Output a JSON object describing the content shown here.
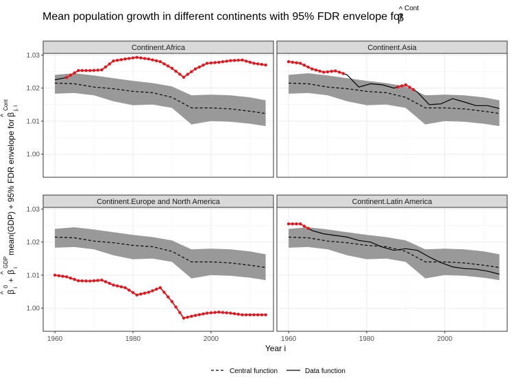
{
  "title": {
    "main": "Mean population growth in different continents with 95% FDR envelope for",
    "beta_hat": "β",
    "hat": "^",
    "beta_sup": "Cont"
  },
  "ylabel": {
    "part1": "β",
    "part1_sub": "i",
    "part1_sup": "0",
    "plus1": "+",
    "part2": "β",
    "part2_sub": "i",
    "part2_sup": "GDP",
    "part3": "mean(GDP) + 95% FDR envelope for",
    "part4": "β",
    "part4_sub": "j, i",
    "part4_sup": "Cont",
    "hat": "^"
  },
  "xlabel": "Year i",
  "legend": {
    "central_label": "Central function",
    "data_label": "Data function"
  },
  "colors": {
    "envelope": "#999999",
    "central": "#000000",
    "data": "#000000",
    "highlight": "#e8141b",
    "panel_bg": "#ffffff",
    "grid": "#ebebeb",
    "strip_bg": "#d9d9d9",
    "border": "#333333"
  },
  "chart_data": {
    "type": "line",
    "facets": [
      "Continent.Africa",
      "Continent.Asia",
      "Continent.Europe and North America",
      "Continent.Latin America"
    ],
    "xlim": [
      1957,
      2016
    ],
    "ylim": [
      0.993,
      1.0305
    ],
    "x_ticks": [
      1960,
      1980,
      2000
    ],
    "y_ticks": [
      1.0,
      1.01,
      1.02,
      1.03
    ],
    "y_tick_labels": [
      "1.00",
      "1.01",
      "1.02",
      "1.03"
    ],
    "x_tick_labels": [
      "1960",
      "1980",
      "2000"
    ],
    "years": [
      1960,
      1965,
      1970,
      1975,
      1980,
      1985,
      1990,
      1995,
      2000,
      2005,
      2010,
      2014
    ],
    "envelope_lower": [
      1.0183,
      1.0185,
      1.0178,
      1.016,
      1.0148,
      1.015,
      1.014,
      1.009,
      1.01,
      1.0098,
      1.0092,
      1.0085
    ],
    "envelope_upper": [
      1.024,
      1.0245,
      1.0238,
      1.023,
      1.0222,
      1.0215,
      1.0205,
      1.0178,
      1.018,
      1.0178,
      1.0172,
      1.0163
    ],
    "central_function": [
      1.0215,
      1.0213,
      1.0203,
      1.0198,
      1.019,
      1.0186,
      1.0172,
      1.014,
      1.014,
      1.0137,
      1.013,
      1.0123
    ],
    "series": [
      {
        "name": "Continent.Africa",
        "years": [
          1960,
          1963,
          1966,
          1969,
          1972,
          1975,
          1978,
          1981,
          1984,
          1987,
          1990,
          1993,
          1996,
          1999,
          2002,
          2005,
          2008,
          2011,
          2014
        ],
        "values": [
          1.0225,
          1.0232,
          1.0253,
          1.0253,
          1.0255,
          1.0282,
          1.0288,
          1.0293,
          1.0288,
          1.028,
          1.026,
          1.0233,
          1.0258,
          1.0275,
          1.0278,
          1.0283,
          1.0285,
          1.0275,
          1.027
        ],
        "highlight_from": 1963,
        "highlight_to": 2014
      },
      {
        "name": "Continent.Asia",
        "years": [
          1960,
          1963,
          1966,
          1969,
          1972,
          1975,
          1978,
          1981,
          1984,
          1987,
          1990,
          1993,
          1996,
          1999,
          2002,
          2005,
          2008,
          2011,
          2014
        ],
        "values": [
          1.028,
          1.0275,
          1.0258,
          1.0248,
          1.0252,
          1.024,
          1.0203,
          1.0213,
          1.021,
          1.02,
          1.021,
          1.0188,
          1.015,
          1.0152,
          1.0168,
          1.0158,
          1.0147,
          1.0147,
          1.0138
        ],
        "highlight_from": 1960,
        "highlight_to": 1974
      },
      {
        "name": "Continent.Europe and North America",
        "years": [
          1960,
          1963,
          1966,
          1969,
          1972,
          1975,
          1978,
          1981,
          1984,
          1987,
          1990,
          1993,
          1996,
          1999,
          2002,
          2005,
          2008,
          2011,
          2014
        ],
        "values": [
          1.01,
          1.0095,
          1.0083,
          1.0082,
          1.0085,
          1.007,
          1.0062,
          1.004,
          1.0048,
          1.0062,
          1.002,
          0.997,
          0.9978,
          0.9985,
          0.9988,
          0.9985,
          0.998,
          0.998,
          0.998
        ],
        "highlight_from": 1960,
        "highlight_to": 2014
      },
      {
        "name": "Continent.Latin America",
        "years": [
          1960,
          1963,
          1966,
          1969,
          1972,
          1975,
          1978,
          1981,
          1984,
          1987,
          1990,
          1993,
          1996,
          1999,
          2002,
          2005,
          2008,
          2011,
          2014
        ],
        "values": [
          1.0255,
          1.0255,
          1.0235,
          1.0225,
          1.022,
          1.0215,
          1.0205,
          1.02,
          1.0185,
          1.0175,
          1.018,
          1.0175,
          1.0155,
          1.0138,
          1.0125,
          1.012,
          1.0118,
          1.0112,
          1.0103
        ],
        "highlight_from": 1960,
        "highlight_to": 1965
      }
    ],
    "extra_highlights": {
      "Continent.Asia": {
        "from": 1988,
        "to": 1992
      }
    }
  }
}
